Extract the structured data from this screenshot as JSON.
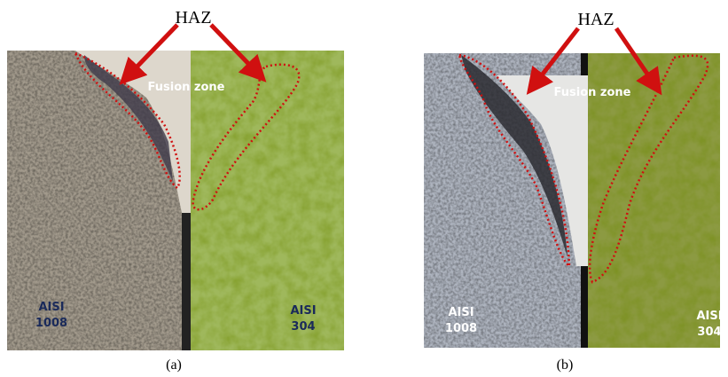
{
  "panels": [
    {
      "caption": "(a)",
      "haz_label": "HAZ",
      "fusion_label": "Fusion zone",
      "left_label": [
        "AISI",
        "1008"
      ],
      "right_label": [
        "AISI",
        "304"
      ]
    },
    {
      "caption": "(b)",
      "haz_label": "HAZ",
      "fusion_label": "Fusion zone",
      "left_label": [
        "AISI",
        "1008"
      ],
      "right_label": [
        "AISI",
        "304"
      ]
    }
  ]
}
